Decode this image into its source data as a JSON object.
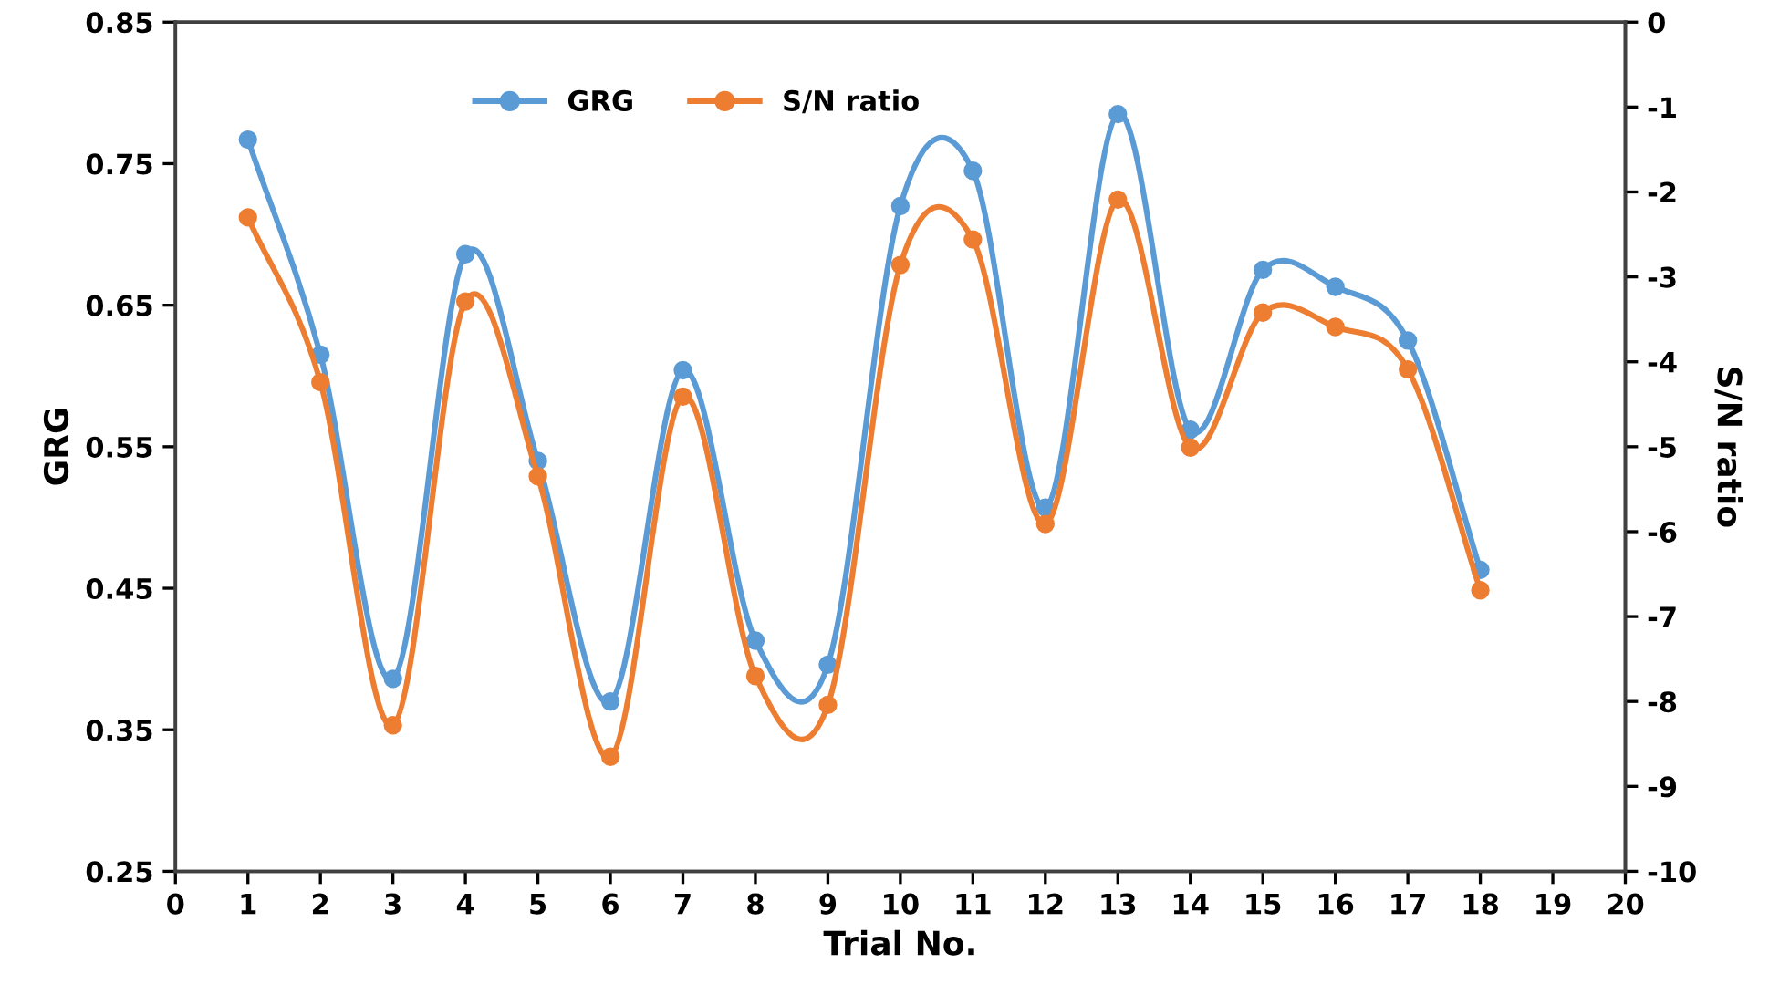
{
  "chart_data": {
    "type": "line",
    "xlabel": "Trial No.",
    "ylabel": "GRG",
    "y2label": "S/N ratio",
    "x": [
      1,
      2,
      3,
      4,
      5,
      6,
      7,
      8,
      9,
      10,
      11,
      12,
      13,
      14,
      15,
      16,
      17,
      18
    ],
    "series": [
      {
        "name": "GRG",
        "color": "#5b9bd5",
        "values": [
          0.767,
          0.615,
          0.386,
          0.686,
          0.54,
          0.37,
          0.604,
          0.413,
          0.396,
          0.72,
          0.745,
          0.507,
          0.785,
          0.562,
          0.675,
          0.663,
          0.625,
          0.463
        ]
      },
      {
        "name": "S/N ratio",
        "color": "#ed7d31",
        "axis": "y2",
        "values": [
          -2.3,
          -4.24,
          -8.28,
          -3.29,
          -5.35,
          -8.65,
          -4.41,
          -7.7,
          -8.04,
          -2.86,
          -2.56,
          -5.91,
          -2.09,
          -5.01,
          -3.42,
          -3.59,
          -4.09,
          -6.69
        ]
      }
    ],
    "xlim": [
      0,
      20
    ],
    "xticks": [
      0,
      1,
      2,
      3,
      4,
      5,
      6,
      7,
      8,
      9,
      10,
      11,
      12,
      13,
      14,
      15,
      16,
      17,
      18,
      19,
      20
    ],
    "ylim": [
      0.25,
      0.85
    ],
    "yticks": [
      0.25,
      0.35,
      0.45,
      0.55,
      0.65,
      0.75,
      0.85
    ],
    "y2lim": [
      -10,
      0
    ],
    "y2ticks": [
      -10,
      -9,
      -8,
      -7,
      -6,
      -5,
      -4,
      -3,
      -2,
      -1,
      0
    ],
    "grid": false,
    "legend": "top",
    "marker": "circle",
    "line_style": "solid"
  }
}
